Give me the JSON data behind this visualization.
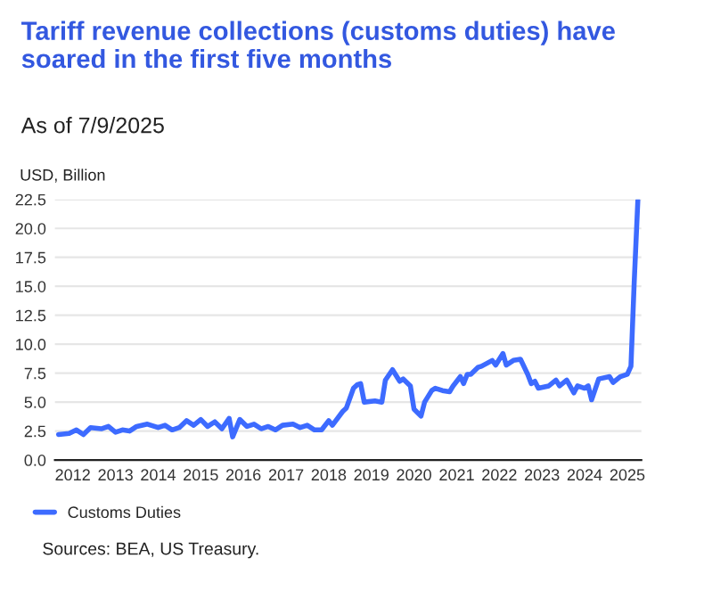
{
  "chart_data": {
    "type": "line",
    "title": "Tariff revenue collections (customs duties) have soared in the first five months",
    "subtitle": "As of 7/9/2025",
    "ylabel": "USD, Billion",
    "x": [
      "2011-09",
      "2011-12",
      "2012-02",
      "2012-04",
      "2012-06",
      "2012-09",
      "2012-11",
      "2013-01",
      "2013-03",
      "2013-05",
      "2013-07",
      "2013-10",
      "2014-01",
      "2014-03",
      "2014-05",
      "2014-07",
      "2014-09",
      "2014-11",
      "2015-01",
      "2015-03",
      "2015-05",
      "2015-07",
      "2015-09",
      "2015-10",
      "2015-12",
      "2016-02",
      "2016-04",
      "2016-06",
      "2016-08",
      "2016-10",
      "2016-12",
      "2017-03",
      "2017-05",
      "2017-07",
      "2017-09",
      "2017-11",
      "2018-01",
      "2018-02",
      "2018-05",
      "2018-06",
      "2018-08",
      "2018-09",
      "2018-10",
      "2018-11",
      "2019-02",
      "2019-04",
      "2019-05",
      "2019-07",
      "2019-09",
      "2019-10",
      "2019-12",
      "2020-01",
      "2020-03",
      "2020-04",
      "2020-06",
      "2020-07",
      "2020-09",
      "2020-11",
      "2020-12",
      "2021-02",
      "2021-03",
      "2021-04",
      "2021-05",
      "2021-07",
      "2021-08",
      "2021-11",
      "2021-12",
      "2022-02",
      "2022-03",
      "2022-05",
      "2022-07",
      "2022-09",
      "2022-10",
      "2022-11",
      "2022-12",
      "2023-03",
      "2023-05",
      "2023-06",
      "2023-08",
      "2023-10",
      "2023-11",
      "2024-01",
      "2024-02",
      "2024-03",
      "2024-05",
      "2024-08",
      "2024-09",
      "2024-11",
      "2025-01",
      "2025-02",
      "2025-03",
      "2025-04"
    ],
    "series": [
      {
        "name": "Customs Duties",
        "color": "#3d6bff",
        "values": [
          2.2,
          2.3,
          2.6,
          2.2,
          2.8,
          2.7,
          2.9,
          2.4,
          2.6,
          2.5,
          2.9,
          3.1,
          2.8,
          3.0,
          2.6,
          2.8,
          3.4,
          3.0,
          3.5,
          2.9,
          3.3,
          2.7,
          3.6,
          2.0,
          3.5,
          2.9,
          3.1,
          2.7,
          2.9,
          2.6,
          3.0,
          3.1,
          2.8,
          3.0,
          2.6,
          2.6,
          3.4,
          3.0,
          4.2,
          4.5,
          6.2,
          6.5,
          6.6,
          5.0,
          5.1,
          5.0,
          6.9,
          7.8,
          6.8,
          7.0,
          6.4,
          4.4,
          3.8,
          5.0,
          6.0,
          6.2,
          6.0,
          5.9,
          6.4,
          7.2,
          6.6,
          7.4,
          7.4,
          8.0,
          8.1,
          8.6,
          8.2,
          9.2,
          8.2,
          8.6,
          8.7,
          7.4,
          6.6,
          6.8,
          6.2,
          6.4,
          6.9,
          6.4,
          6.9,
          5.8,
          6.4,
          6.2,
          6.4,
          5.2,
          7.0,
          7.2,
          6.7,
          7.2,
          7.4,
          8.1,
          15.4,
          22.4
        ]
      }
    ],
    "xlim": [
      "2011-08",
      "2025-05"
    ],
    "xticks": [
      "2012",
      "2013",
      "2014",
      "2015",
      "2016",
      "2017",
      "2018",
      "2019",
      "2020",
      "2021",
      "2022",
      "2023",
      "2024",
      "2025"
    ],
    "ylim": [
      0,
      22.5
    ],
    "yticks": [
      {
        "value": 0,
        "label": "0.0"
      },
      {
        "value": 2.5,
        "label": "2.5"
      },
      {
        "value": 5,
        "label": "5.0"
      },
      {
        "value": 7.5,
        "label": "7.5"
      },
      {
        "value": 10,
        "label": "10.0"
      },
      {
        "value": 12.5,
        "label": "12.5"
      },
      {
        "value": 15,
        "label": "15.0"
      },
      {
        "value": 17.5,
        "label": "17.5"
      },
      {
        "value": 20,
        "label": "20.0"
      },
      {
        "value": 22.5,
        "label": "22.5"
      }
    ],
    "grid": "y",
    "legend": "bottom left",
    "marker": "none",
    "line_style": "solid",
    "annotations": [
      "Sources: BEA, US Treasury."
    ]
  }
}
